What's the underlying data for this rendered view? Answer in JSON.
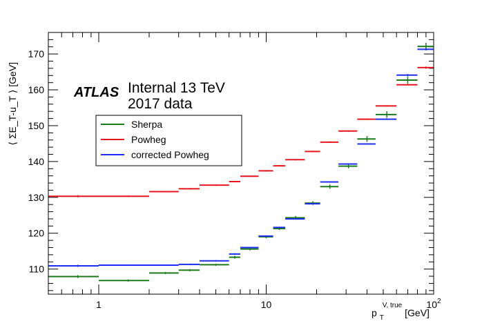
{
  "chart_data": {
    "type": "scatter",
    "title": "",
    "x_scale": "log",
    "xlim": [
      0.5,
      100
    ],
    "ylim": [
      103,
      176
    ],
    "xlabel": {
      "main": "p",
      "sub": "T",
      "sup": "V, true",
      "unit": " [GeV]"
    },
    "ylabel": "⟨ ΣE_T-u_T ⟩ [GeV]",
    "x_tick_labels": [
      {
        "value": 1,
        "label": "1"
      },
      {
        "value": 10,
        "label": "10"
      },
      {
        "value": 100,
        "label": "10",
        "exp": "2"
      }
    ],
    "y_tick_labels": [
      {
        "value": 110,
        "label": "110"
      },
      {
        "value": 120,
        "label": "120"
      },
      {
        "value": 130,
        "label": "130"
      },
      {
        "value": 140,
        "label": "140"
      },
      {
        "value": 150,
        "label": "150"
      },
      {
        "value": 160,
        "label": "160"
      },
      {
        "value": 170,
        "label": "170"
      }
    ],
    "annotation": {
      "atlas": "ATLAS",
      "line1": "Internal 13 TeV",
      "line2": "2017 data"
    },
    "legend_position": "upper-left",
    "series": [
      {
        "name": "Sherpa",
        "color": "#1a7a1a",
        "bins": [
          {
            "x": 0.5,
            "x2": 1.0,
            "y": 107.9,
            "err": 0.4,
            "xc": 0.75
          },
          {
            "x": 1.0,
            "x2": 2.0,
            "y": 106.8,
            "err": 0.3,
            "xc": 1.5
          },
          {
            "x": 2.0,
            "x2": 3.0,
            "y": 108.9,
            "err": 0.3,
            "xc": 2.5
          },
          {
            "x": 3.0,
            "x2": 4.0,
            "y": 109.7,
            "err": 0.3,
            "xc": 3.5
          },
          {
            "x": 4.0,
            "x2": 6.0,
            "y": 111.2,
            "err": 0.3,
            "xc": 5.0
          },
          {
            "x": 6.0,
            "x2": 7.0,
            "y": 113.3,
            "err": 0.4,
            "xc": 6.5
          },
          {
            "x": 7.0,
            "x2": 9.0,
            "y": 115.6,
            "err": 0.4,
            "xc": 8.0
          },
          {
            "x": 9.0,
            "x2": 11.0,
            "y": 119.0,
            "err": 0.4,
            "xc": 10.0
          },
          {
            "x": 11.0,
            "x2": 13.0,
            "y": 121.3,
            "err": 0.4,
            "xc": 12.0
          },
          {
            "x": 13.0,
            "x2": 17.0,
            "y": 124.3,
            "err": 0.5,
            "xc": 15.0
          },
          {
            "x": 17.0,
            "x2": 21.0,
            "y": 128.4,
            "err": 0.5,
            "xc": 19.0
          },
          {
            "x": 21.0,
            "x2": 27.0,
            "y": 133.0,
            "err": 0.6,
            "xc": 24.0
          },
          {
            "x": 27.0,
            "x2": 35.0,
            "y": 138.7,
            "err": 0.6,
            "xc": 31.0
          },
          {
            "x": 35.0,
            "x2": 45.0,
            "y": 146.3,
            "err": 0.8,
            "xc": 40.0
          },
          {
            "x": 45.0,
            "x2": 60.0,
            "y": 153.1,
            "err": 0.9,
            "xc": 52.5
          },
          {
            "x": 60.0,
            "x2": 80.0,
            "y": 162.7,
            "err": 1.0,
            "xc": 70.0
          },
          {
            "x": 80.0,
            "x2": 100.0,
            "y": 172.1,
            "err": 1.0,
            "xc": 90.0
          }
        ]
      },
      {
        "name": "Powheg",
        "color": "#e8141c",
        "bins": [
          {
            "x": 0.5,
            "x2": 1.0,
            "y": 130.3,
            "err": 0.3,
            "xc": 0.75
          },
          {
            "x": 1.0,
            "x2": 2.0,
            "y": 130.3,
            "err": 0.2,
            "xc": 1.5
          },
          {
            "x": 2.0,
            "x2": 3.0,
            "y": 131.6,
            "err": 0.2,
            "xc": 2.5
          },
          {
            "x": 3.0,
            "x2": 4.0,
            "y": 132.4,
            "err": 0.2,
            "xc": 3.5
          },
          {
            "x": 4.0,
            "x2": 6.0,
            "y": 133.4,
            "err": 0.2,
            "xc": 5.0
          },
          {
            "x": 6.0,
            "x2": 7.0,
            "y": 134.4,
            "err": 0.2,
            "xc": 6.5
          },
          {
            "x": 7.0,
            "x2": 9.0,
            "y": 135.9,
            "err": 0.2,
            "xc": 8.0
          },
          {
            "x": 9.0,
            "x2": 11.0,
            "y": 137.4,
            "err": 0.2,
            "xc": 10.0
          },
          {
            "x": 11.0,
            "x2": 13.0,
            "y": 138.8,
            "err": 0.2,
            "xc": 12.0
          },
          {
            "x": 13.0,
            "x2": 17.0,
            "y": 140.5,
            "err": 0.2,
            "xc": 15.0
          },
          {
            "x": 17.0,
            "x2": 21.0,
            "y": 142.8,
            "err": 0.2,
            "xc": 19.0
          },
          {
            "x": 21.0,
            "x2": 27.0,
            "y": 145.4,
            "err": 0.2,
            "xc": 24.0
          },
          {
            "x": 27.0,
            "x2": 35.0,
            "y": 148.5,
            "err": 0.2,
            "xc": 31.0
          },
          {
            "x": 35.0,
            "x2": 45.0,
            "y": 151.8,
            "err": 0.2,
            "xc": 40.0
          },
          {
            "x": 45.0,
            "x2": 60.0,
            "y": 155.5,
            "err": 0.2,
            "xc": 52.5
          },
          {
            "x": 60.0,
            "x2": 80.0,
            "y": 161.4,
            "err": 0.2,
            "xc": 70.0
          },
          {
            "x": 80.0,
            "x2": 100.0,
            "y": 166.2,
            "err": 0.3,
            "xc": 90.0
          }
        ]
      },
      {
        "name": "corrected Powheg",
        "color": "#1c2cf0",
        "bins": [
          {
            "x": 0.5,
            "x2": 1.0,
            "y": 110.9,
            "err": 0.3,
            "xc": 0.75
          },
          {
            "x": 1.0,
            "x2": 2.0,
            "y": 111.1,
            "err": 0.2,
            "xc": 1.5
          },
          {
            "x": 2.0,
            "x2": 3.0,
            "y": 111.1,
            "err": 0.2,
            "xc": 2.5
          },
          {
            "x": 3.0,
            "x2": 4.0,
            "y": 111.3,
            "err": 0.2,
            "xc": 3.5
          },
          {
            "x": 4.0,
            "x2": 6.0,
            "y": 112.3,
            "err": 0.2,
            "xc": 5.0
          },
          {
            "x": 6.0,
            "x2": 7.0,
            "y": 114.2,
            "err": 0.2,
            "xc": 6.5
          },
          {
            "x": 7.0,
            "x2": 9.0,
            "y": 116.0,
            "err": 0.2,
            "xc": 8.0
          },
          {
            "x": 9.0,
            "x2": 11.0,
            "y": 119.2,
            "err": 0.2,
            "xc": 10.0
          },
          {
            "x": 11.0,
            "x2": 13.0,
            "y": 121.6,
            "err": 0.2,
            "xc": 12.0
          },
          {
            "x": 13.0,
            "x2": 17.0,
            "y": 124.0,
            "err": 0.2,
            "xc": 15.0
          },
          {
            "x": 17.0,
            "x2": 21.0,
            "y": 128.2,
            "err": 0.2,
            "xc": 19.0
          },
          {
            "x": 21.0,
            "x2": 27.0,
            "y": 134.3,
            "err": 0.2,
            "xc": 24.0
          },
          {
            "x": 27.0,
            "x2": 35.0,
            "y": 139.3,
            "err": 0.2,
            "xc": 31.0
          },
          {
            "x": 35.0,
            "x2": 45.0,
            "y": 144.9,
            "err": 0.2,
            "xc": 40.0
          },
          {
            "x": 45.0,
            "x2": 60.0,
            "y": 151.8,
            "err": 0.2,
            "xc": 52.5
          },
          {
            "x": 60.0,
            "x2": 80.0,
            "y": 164.1,
            "err": 0.3,
            "xc": 70.0
          },
          {
            "x": 80.0,
            "x2": 100.0,
            "y": 171.3,
            "err": 0.3,
            "xc": 90.0
          }
        ]
      }
    ]
  }
}
